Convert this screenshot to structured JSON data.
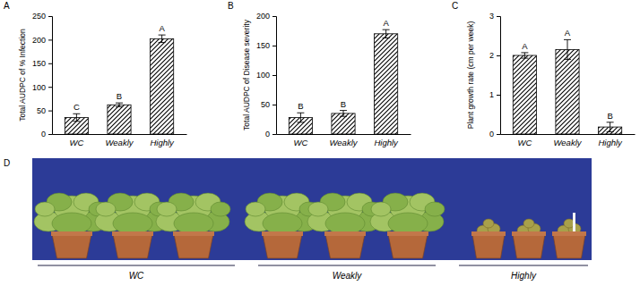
{
  "chart_data": [
    {
      "type": "bar",
      "panel_label": "A",
      "y_label": "Total AUDPC of % Infection",
      "categories": [
        "WC",
        "Weakly",
        "Highly"
      ],
      "values": [
        35,
        62,
        202
      ],
      "errors": [
        8,
        4,
        8
      ],
      "annotations": [
        "C",
        "B",
        "A"
      ],
      "color": "#000000",
      "ylim": [
        0,
        250
      ],
      "yticks": [
        0,
        50,
        100,
        150,
        200,
        250
      ],
      "grid": false
    },
    {
      "type": "bar",
      "panel_label": "B",
      "y_label": "Total AUDPC of Disease severity",
      "categories": [
        "WC",
        "Weakly",
        "Highly"
      ],
      "values": [
        28,
        35,
        170
      ],
      "errors": [
        8,
        5,
        7
      ],
      "annotations": [
        "B",
        "B",
        "A"
      ],
      "color": "#000000",
      "ylim": [
        0,
        200
      ],
      "yticks": [
        0,
        50,
        100,
        150,
        200
      ],
      "grid": false
    },
    {
      "type": "bar",
      "panel_label": "C",
      "y_label": "Plant growth rate (cm per week)",
      "categories": [
        "WC",
        "Weakly",
        "Highly"
      ],
      "values": [
        2.0,
        2.15,
        0.18
      ],
      "errors": [
        0.07,
        0.25,
        0.12
      ],
      "annotations": [
        "A",
        "A",
        "B"
      ],
      "color": "#000000",
      "ylim": [
        0,
        3
      ],
      "yticks": [
        0,
        1,
        2,
        3
      ],
      "grid": false
    }
  ],
  "image_panel": {
    "panel_label": "D",
    "groups": [
      "WC",
      "Weakly",
      "Highly"
    ]
  }
}
